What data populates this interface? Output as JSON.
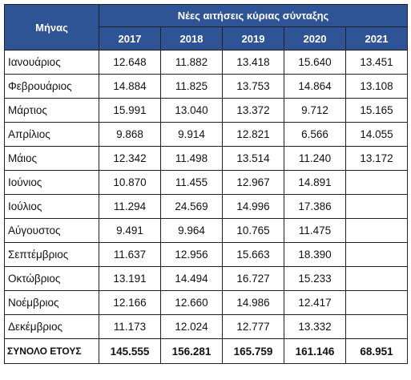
{
  "header": {
    "month_col": "Μήνας",
    "group_title": "Νέες αιτήσεις κύριας σύνταξης",
    "years": [
      "2017",
      "2018",
      "2019",
      "2020",
      "2021"
    ]
  },
  "rows": [
    {
      "month": "Ιανουάριος",
      "v": [
        "12.648",
        "11.882",
        "13.418",
        "15.640",
        "13.451"
      ]
    },
    {
      "month": "Φεβρουάριος",
      "v": [
        "14.884",
        "11.825",
        "13.753",
        "14.864",
        "13.108"
      ]
    },
    {
      "month": "Μάρτιος",
      "v": [
        "15.991",
        "13.040",
        "13.372",
        "9.712",
        "15.165"
      ]
    },
    {
      "month": "Απρίλιος",
      "v": [
        "9.868",
        "9.914",
        "12.821",
        "6.566",
        "14.055"
      ]
    },
    {
      "month": "Μάιος",
      "v": [
        "12.342",
        "11.498",
        "13.514",
        "11.240",
        "13.172"
      ]
    },
    {
      "month": "Ιούνιος",
      "v": [
        "10.870",
        "11.455",
        "12.967",
        "14.891",
        ""
      ]
    },
    {
      "month": "Ιούλιος",
      "v": [
        "11.294",
        "24.569",
        "14.996",
        "17.386",
        ""
      ]
    },
    {
      "month": "Αύγουστος",
      "v": [
        "9.491",
        "9.964",
        "10.765",
        "11.475",
        ""
      ]
    },
    {
      "month": "Σεπτέμβριος",
      "v": [
        "11.637",
        "12.956",
        "15.663",
        "18.390",
        ""
      ]
    },
    {
      "month": "Οκτώβριος",
      "v": [
        "13.191",
        "14.494",
        "16.727",
        "15.233",
        ""
      ]
    },
    {
      "month": "Νοέμβριος",
      "v": [
        "12.166",
        "12.660",
        "14.986",
        "12.417",
        ""
      ]
    },
    {
      "month": "Δεκέμβριος",
      "v": [
        "11.173",
        "12.024",
        "12.777",
        "13.332",
        ""
      ]
    }
  ],
  "total": {
    "label": "ΣΥΝΟΛΟ ΕΤΟΥΣ",
    "v": [
      "145.555",
      "156.281",
      "165.759",
      "161.146",
      "68.951"
    ]
  },
  "colors": {
    "header_bg": "#2f5496",
    "header_text": "#ffffff",
    "border": "#222222"
  }
}
